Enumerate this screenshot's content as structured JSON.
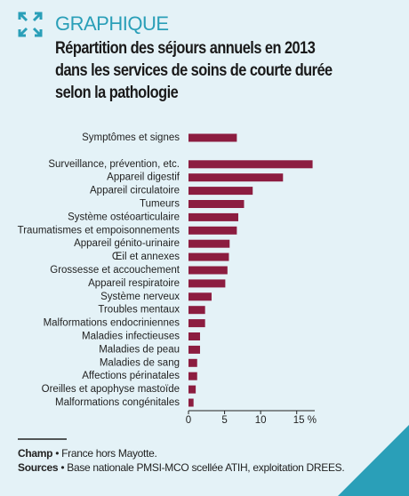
{
  "header": {
    "label": "GRAPHIQUE"
  },
  "chart_data": {
    "type": "barh",
    "title": "Répartition des séjours annuels en 2013\ndans les services de soins de courte durée\nselon la pathologie",
    "categories": [
      "Symptômes et signes",
      null,
      "Surveillance, prévention, etc.",
      "Appareil digestif",
      "Appareil circulatoire",
      "Tumeurs",
      "Système ostéoarticulaire",
      "Traumatismes et empoisonnements",
      "Appareil génito-urinaire",
      "Œil et annexes",
      "Grossesse et accouchement",
      "Appareil respiratoire",
      "Système nerveux",
      "Troubles mentaux",
      "Malformations endocriniennes",
      "Maladies infectieuses",
      "Maladies de peau",
      "Maladies de sang",
      "Affections périnatales",
      "Oreilles et apophyse mastoïde",
      "Malformations congénitales"
    ],
    "values": [
      6.7,
      null,
      17.2,
      13.1,
      8.9,
      7.7,
      6.9,
      6.7,
      5.7,
      5.6,
      5.4,
      5.1,
      3.2,
      2.3,
      2.3,
      1.6,
      1.6,
      1.2,
      1.2,
      1.0,
      0.7
    ],
    "color": "#8c1d40",
    "xlim": [
      0,
      17.5
    ],
    "xticks": [
      0,
      5,
      10,
      {
        "value": 15,
        "label": "15 %"
      }
    ]
  },
  "footer": {
    "champ": {
      "label": "Champ",
      "text": "• France hors Mayotte."
    },
    "sources": {
      "label": "Sources",
      "text": "• Base nationale PMSI-MCO scellée ATIH, exploitation DREES."
    }
  }
}
